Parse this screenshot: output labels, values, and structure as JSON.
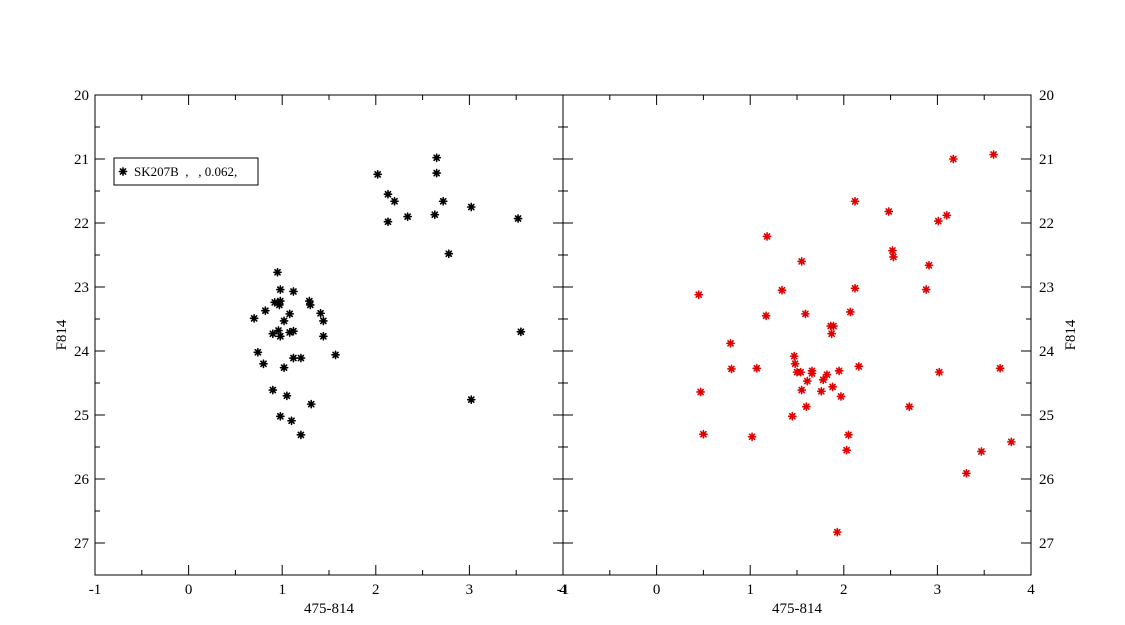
{
  "chart_data": [
    {
      "type": "scatter",
      "xlabel": "475-814",
      "ylabel": "F814",
      "xlim": [
        -1,
        4
      ],
      "ylim": [
        27.5,
        20
      ],
      "y_inverted": true,
      "xticks": [
        "-1",
        "0",
        "1",
        "2",
        "3",
        "4"
      ],
      "yticks": [
        "20",
        "21",
        "22",
        "23",
        "24",
        "25",
        "26",
        "27"
      ],
      "legend": {
        "label": "SK207B  ,   , 0.062,",
        "placement": "top-left"
      },
      "series": [
        {
          "color": "#000000",
          "marker": "star",
          "points": [
            [
              0.95,
              22.77
            ],
            [
              0.98,
              23.04
            ],
            [
              1.12,
              23.07
            ],
            [
              0.92,
              23.24
            ],
            [
              0.98,
              23.22
            ],
            [
              0.97,
              23.28
            ],
            [
              1.29,
              23.22
            ],
            [
              1.3,
              23.28
            ],
            [
              0.82,
              23.37
            ],
            [
              1.08,
              23.42
            ],
            [
              1.41,
              23.41
            ],
            [
              0.7,
              23.49
            ],
            [
              1.02,
              23.53
            ],
            [
              1.44,
              23.53
            ],
            [
              0.9,
              23.73
            ],
            [
              0.96,
              23.68
            ],
            [
              1.08,
              23.71
            ],
            [
              1.12,
              23.69
            ],
            [
              1.44,
              23.77
            ],
            [
              0.98,
              23.77
            ],
            [
              0.74,
              24.02
            ],
            [
              1.57,
              24.06
            ],
            [
              1.12,
              24.11
            ],
            [
              1.2,
              24.11
            ],
            [
              0.8,
              24.2
            ],
            [
              1.02,
              24.26
            ],
            [
              0.9,
              24.61
            ],
            [
              1.05,
              24.7
            ],
            [
              1.31,
              24.83
            ],
            [
              0.98,
              25.02
            ],
            [
              1.1,
              25.09
            ],
            [
              1.2,
              25.31
            ],
            [
              2.65,
              20.98
            ],
            [
              2.02,
              21.24
            ],
            [
              2.65,
              21.22
            ],
            [
              2.13,
              21.55
            ],
            [
              2.2,
              21.66
            ],
            [
              2.72,
              21.66
            ],
            [
              3.02,
              21.75
            ],
            [
              2.34,
              21.9
            ],
            [
              2.63,
              21.87
            ],
            [
              2.13,
              21.98
            ],
            [
              3.52,
              21.93
            ],
            [
              2.78,
              22.48
            ],
            [
              3.55,
              23.7
            ],
            [
              3.02,
              24.76
            ]
          ]
        }
      ]
    },
    {
      "type": "scatter",
      "xlabel": "475-814",
      "ylabel": "F814",
      "xlim": [
        -1,
        4
      ],
      "ylim": [
        27.5,
        20
      ],
      "y_inverted": true,
      "xticks": [
        "-1",
        "0",
        "1",
        "2",
        "3",
        "4"
      ],
      "yticks": [
        "20",
        "21",
        "22",
        "23",
        "24",
        "25",
        "26",
        "27"
      ],
      "series": [
        {
          "color": "#e00000",
          "marker": "star",
          "points": [
            [
              3.6,
              20.93
            ],
            [
              3.17,
              21.0
            ],
            [
              2.12,
              21.66
            ],
            [
              2.48,
              21.82
            ],
            [
              3.1,
              21.88
            ],
            [
              3.01,
              21.97
            ],
            [
              1.18,
              22.21
            ],
            [
              2.52,
              22.43
            ],
            [
              2.53,
              22.53
            ],
            [
              1.55,
              22.6
            ],
            [
              2.91,
              22.66
            ],
            [
              1.34,
              23.05
            ],
            [
              2.12,
              23.02
            ],
            [
              2.88,
              23.04
            ],
            [
              0.45,
              23.12
            ],
            [
              1.17,
              23.45
            ],
            [
              1.59,
              23.42
            ],
            [
              2.07,
              23.39
            ],
            [
              1.86,
              23.61
            ],
            [
              1.89,
              23.61
            ],
            [
              1.87,
              23.73
            ],
            [
              0.79,
              23.88
            ],
            [
              1.47,
              24.08
            ],
            [
              1.48,
              24.2
            ],
            [
              2.16,
              24.24
            ],
            [
              0.8,
              24.28
            ],
            [
              1.07,
              24.27
            ],
            [
              1.5,
              24.33
            ],
            [
              1.54,
              24.33
            ],
            [
              1.66,
              24.31
            ],
            [
              1.66,
              24.35
            ],
            [
              1.95,
              24.31
            ],
            [
              1.82,
              24.37
            ],
            [
              1.61,
              24.47
            ],
            [
              1.78,
              24.45
            ],
            [
              3.02,
              24.33
            ],
            [
              3.67,
              24.27
            ],
            [
              1.88,
              24.56
            ],
            [
              1.55,
              24.61
            ],
            [
              1.76,
              24.63
            ],
            [
              0.47,
              24.64
            ],
            [
              1.97,
              24.71
            ],
            [
              2.7,
              24.87
            ],
            [
              1.6,
              24.87
            ],
            [
              1.45,
              25.02
            ],
            [
              0.5,
              25.3
            ],
            [
              1.02,
              25.34
            ],
            [
              2.05,
              25.31
            ],
            [
              3.79,
              25.42
            ],
            [
              2.03,
              25.55
            ],
            [
              3.47,
              25.57
            ],
            [
              3.31,
              25.91
            ],
            [
              1.93,
              26.83
            ]
          ]
        }
      ]
    }
  ]
}
